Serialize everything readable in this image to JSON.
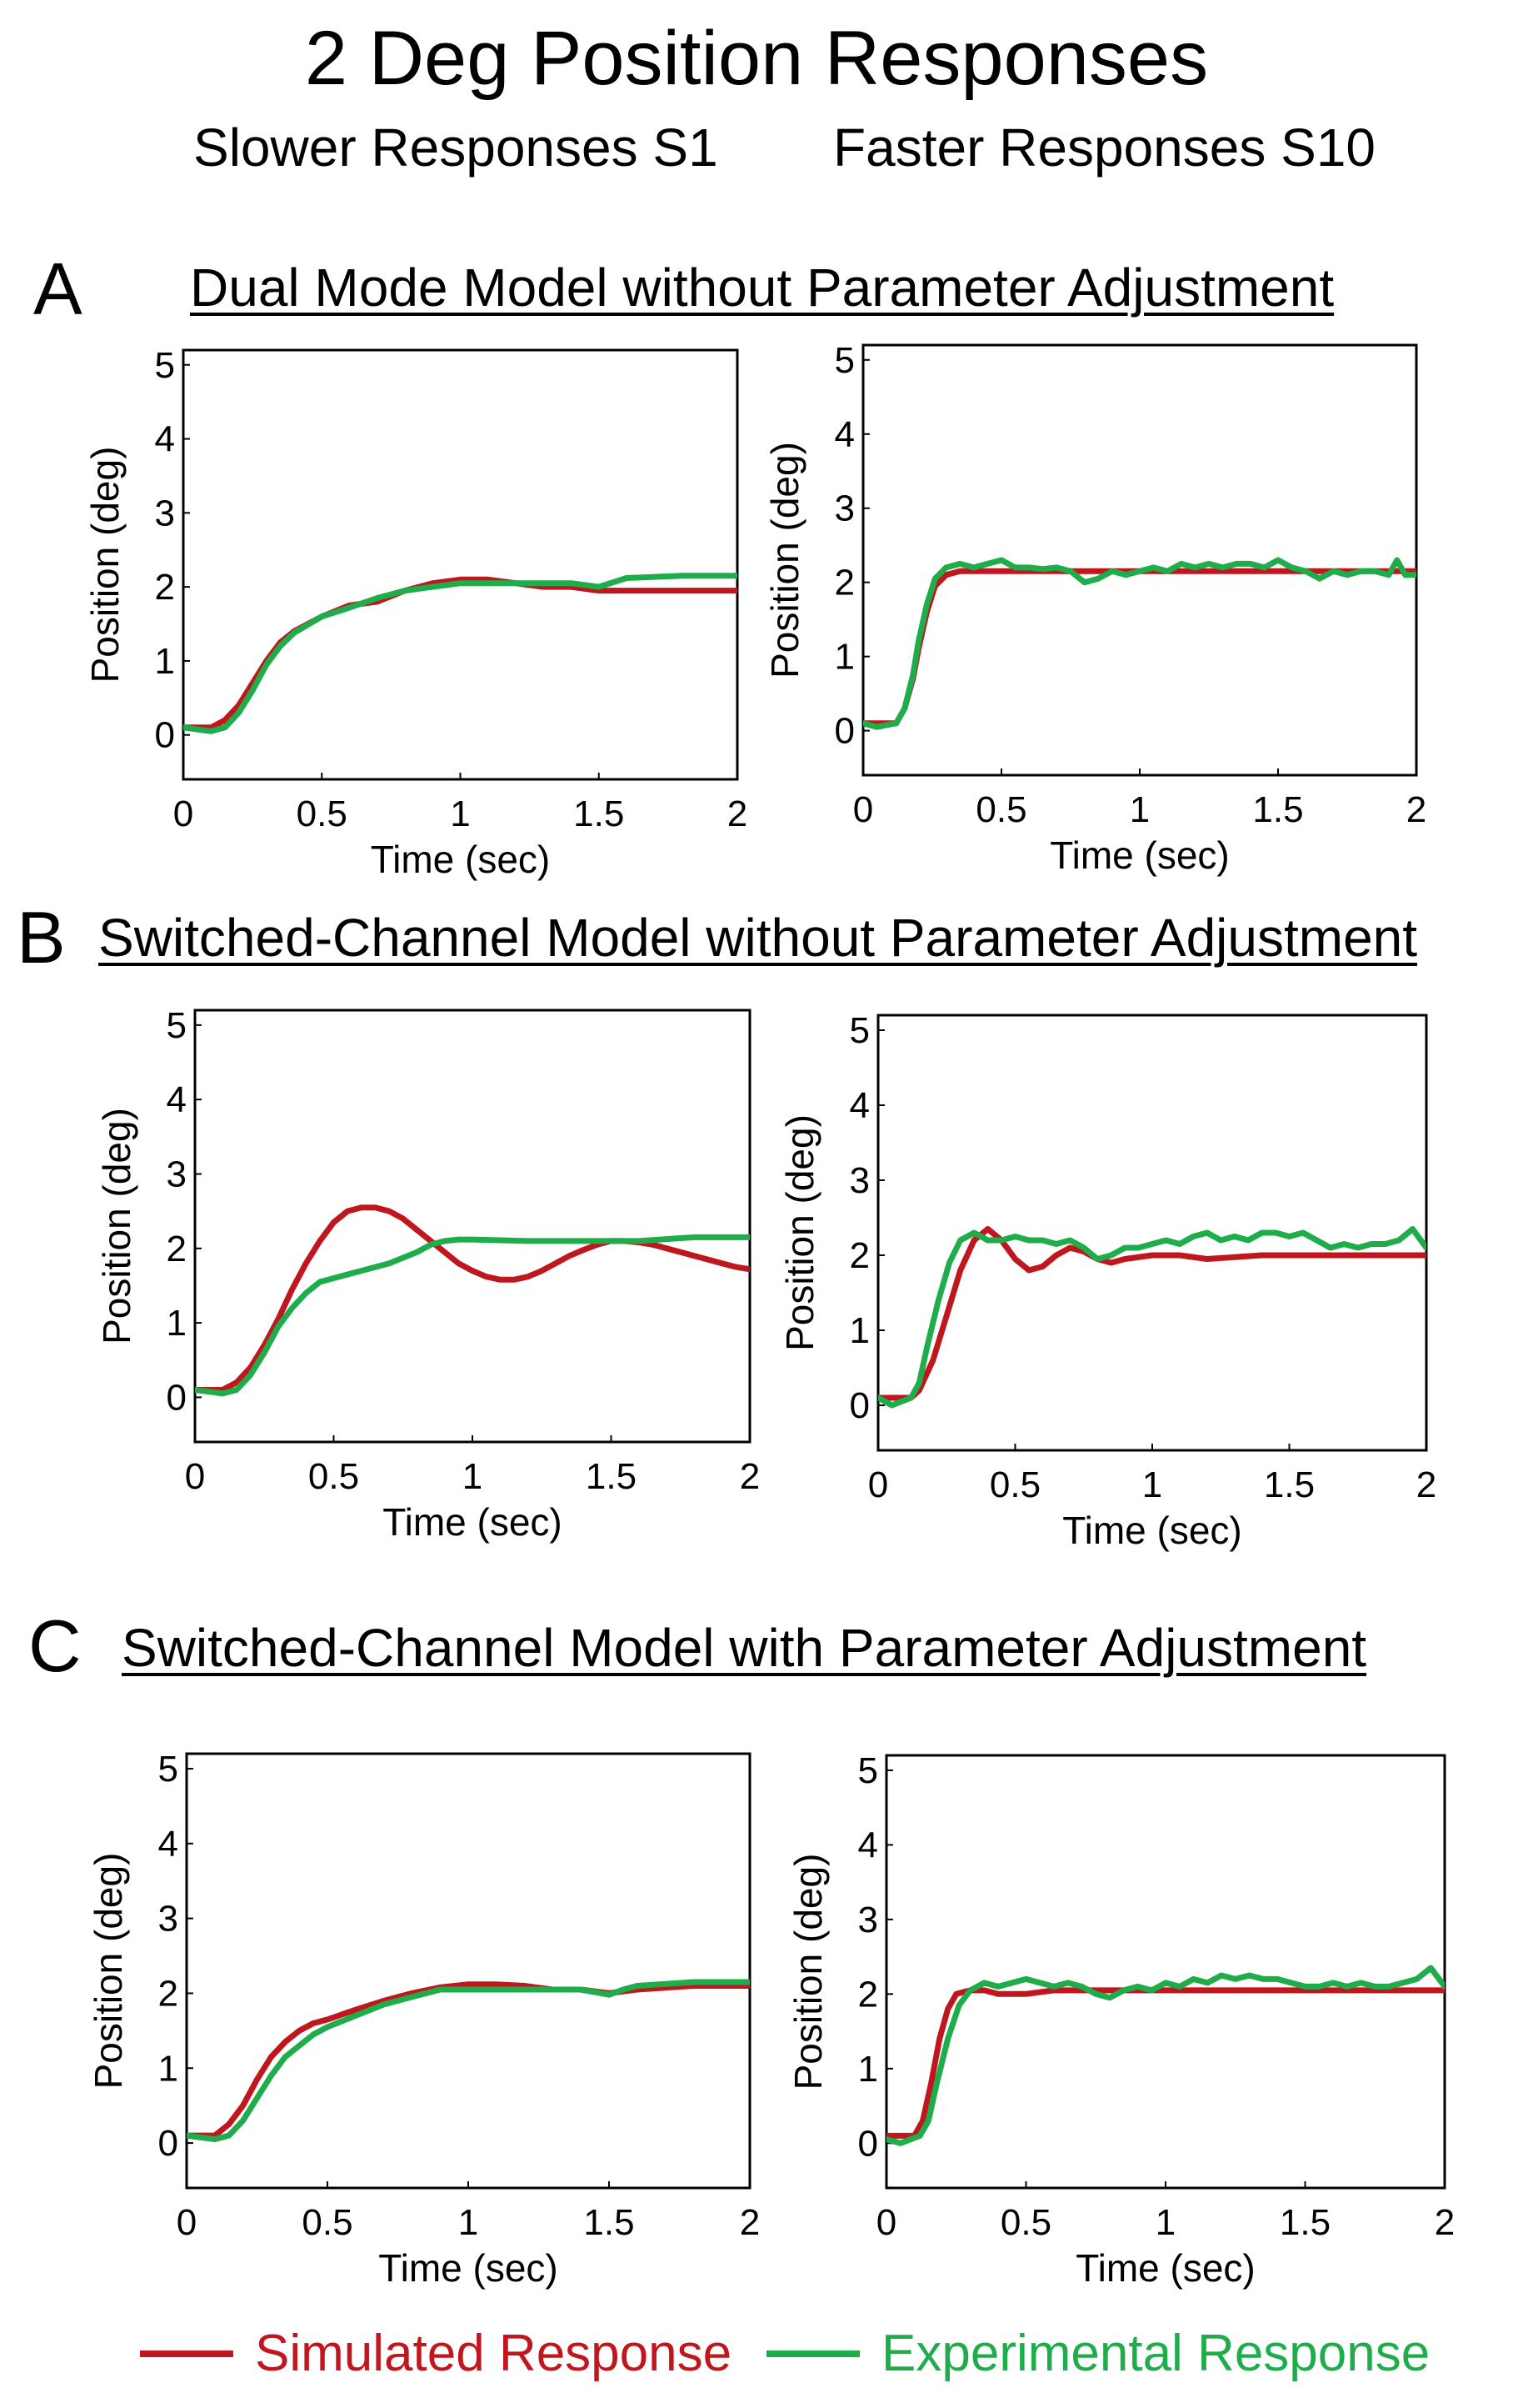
{
  "figure": {
    "title": "2 Deg Position Responses",
    "subtitle_left": "Slower Responses  S1",
    "subtitle_right": "Faster Responses  S10",
    "sections": [
      {
        "letter": "A",
        "title": "Dual Mode Model without Parameter Adjustment"
      },
      {
        "letter": "B",
        "title": "Switched-Channel  Model without Parameter Adjustment"
      },
      {
        "letter": "C",
        "title": "Switched-Channel  Model with Parameter Adjustment"
      }
    ],
    "legend": [
      {
        "label": "Simulated Response",
        "color": "#c0161e"
      },
      {
        "label": "Experimental Response",
        "color": "#1fad4b"
      }
    ]
  },
  "chart_data": [
    {
      "id": "A-left",
      "type": "line",
      "xlabel": "Time (sec)",
      "ylabel": "Position (deg)",
      "xlim": [
        0,
        2
      ],
      "ylim": [
        -0.6,
        5.2
      ],
      "xticks": [
        0,
        0.5,
        1,
        1.5,
        2
      ],
      "xtick_labels": [
        "0",
        "0.5",
        "1",
        "1.5",
        "2"
      ],
      "yticks": [
        0,
        1,
        2,
        3,
        4,
        5
      ],
      "ytick_labels": [
        "0",
        "1",
        "2",
        "3",
        "4",
        "5"
      ],
      "series": [
        {
          "name": "Simulated Response",
          "color": "#c0161e",
          "x": [
            0,
            0.1,
            0.15,
            0.2,
            0.25,
            0.3,
            0.35,
            0.4,
            0.5,
            0.6,
            0.7,
            0.8,
            0.9,
            1.0,
            1.1,
            1.2,
            1.3,
            1.4,
            1.5,
            1.6,
            1.8,
            2.0
          ],
          "y": [
            0.1,
            0.1,
            0.2,
            0.4,
            0.7,
            1.0,
            1.25,
            1.4,
            1.6,
            1.75,
            1.8,
            1.95,
            2.05,
            2.1,
            2.1,
            2.05,
            2.0,
            2.0,
            1.95,
            1.95,
            1.95,
            1.95
          ]
        },
        {
          "name": "Experimental Response",
          "color": "#1fad4b",
          "x": [
            0,
            0.1,
            0.15,
            0.2,
            0.25,
            0.3,
            0.35,
            0.4,
            0.5,
            0.6,
            0.7,
            0.8,
            0.9,
            1.0,
            1.1,
            1.2,
            1.3,
            1.4,
            1.5,
            1.6,
            1.8,
            2.0
          ],
          "y": [
            0.1,
            0.05,
            0.1,
            0.3,
            0.6,
            0.95,
            1.2,
            1.38,
            1.6,
            1.72,
            1.85,
            1.95,
            2.0,
            2.05,
            2.05,
            2.05,
            2.05,
            2.05,
            2.0,
            2.12,
            2.15,
            2.15
          ]
        }
      ]
    },
    {
      "id": "A-right",
      "type": "line",
      "xlabel": "Time (sec)",
      "ylabel": "Position (deg)",
      "xlim": [
        0,
        2
      ],
      "ylim": [
        -0.6,
        5.2
      ],
      "xticks": [
        0,
        0.5,
        1,
        1.5,
        2
      ],
      "xtick_labels": [
        "0",
        "0.5",
        "1",
        "1.5",
        "2"
      ],
      "yticks": [
        0,
        1,
        2,
        3,
        4,
        5
      ],
      "ytick_labels": [
        "0",
        "1",
        "2",
        "3",
        "4",
        "5"
      ],
      "series": [
        {
          "name": "Simulated Response",
          "color": "#c0161e",
          "x": [
            0,
            0.12,
            0.15,
            0.18,
            0.2,
            0.23,
            0.26,
            0.3,
            0.35,
            0.45,
            0.6,
            0.8,
            1.0,
            1.2,
            1.4,
            1.6,
            1.8,
            2.0
          ],
          "y": [
            0.1,
            0.1,
            0.3,
            0.7,
            1.1,
            1.6,
            1.95,
            2.1,
            2.15,
            2.15,
            2.15,
            2.15,
            2.15,
            2.15,
            2.15,
            2.15,
            2.15,
            2.15
          ]
        },
        {
          "name": "Experimental Response",
          "color": "#1fad4b",
          "x": [
            0,
            0.05,
            0.12,
            0.15,
            0.18,
            0.2,
            0.23,
            0.26,
            0.3,
            0.35,
            0.4,
            0.45,
            0.5,
            0.55,
            0.6,
            0.65,
            0.7,
            0.75,
            0.8,
            0.85,
            0.9,
            0.95,
            1.0,
            1.05,
            1.1,
            1.15,
            1.2,
            1.25,
            1.3,
            1.35,
            1.4,
            1.45,
            1.5,
            1.55,
            1.6,
            1.65,
            1.7,
            1.75,
            1.8,
            1.85,
            1.9,
            1.93,
            1.96,
            2.0
          ],
          "y": [
            0.1,
            0.05,
            0.1,
            0.3,
            0.75,
            1.2,
            1.7,
            2.05,
            2.2,
            2.25,
            2.2,
            2.25,
            2.3,
            2.2,
            2.2,
            2.18,
            2.2,
            2.15,
            2.0,
            2.05,
            2.15,
            2.1,
            2.15,
            2.2,
            2.15,
            2.25,
            2.2,
            2.25,
            2.2,
            2.25,
            2.25,
            2.2,
            2.3,
            2.2,
            2.15,
            2.05,
            2.15,
            2.1,
            2.15,
            2.15,
            2.1,
            2.3,
            2.1,
            2.1
          ]
        }
      ]
    },
    {
      "id": "B-left",
      "type": "line",
      "xlabel": "Time (sec)",
      "ylabel": "Position (deg)",
      "xlim": [
        0,
        2
      ],
      "ylim": [
        -0.6,
        5.2
      ],
      "xticks": [
        0,
        0.5,
        1,
        1.5,
        2
      ],
      "xtick_labels": [
        "0",
        "0.5",
        "1",
        "1.5",
        "2"
      ],
      "yticks": [
        0,
        1,
        2,
        3,
        4,
        5
      ],
      "ytick_labels": [
        "0",
        "1",
        "2",
        "3",
        "4",
        "5"
      ],
      "series": [
        {
          "name": "Simulated Response",
          "color": "#c0161e",
          "x": [
            0,
            0.1,
            0.15,
            0.2,
            0.25,
            0.3,
            0.35,
            0.4,
            0.45,
            0.5,
            0.55,
            0.6,
            0.65,
            0.7,
            0.75,
            0.8,
            0.85,
            0.9,
            0.95,
            1.0,
            1.05,
            1.1,
            1.15,
            1.2,
            1.25,
            1.3,
            1.35,
            1.4,
            1.45,
            1.5,
            1.55,
            1.6,
            1.65,
            1.7,
            1.75,
            1.8,
            1.85,
            1.9,
            1.95,
            2.0
          ],
          "y": [
            0.1,
            0.1,
            0.2,
            0.4,
            0.7,
            1.05,
            1.45,
            1.8,
            2.1,
            2.35,
            2.5,
            2.55,
            2.55,
            2.5,
            2.4,
            2.25,
            2.1,
            1.95,
            1.8,
            1.7,
            1.62,
            1.58,
            1.58,
            1.62,
            1.7,
            1.8,
            1.9,
            1.98,
            2.05,
            2.1,
            2.1,
            2.08,
            2.05,
            2.0,
            1.95,
            1.9,
            1.85,
            1.8,
            1.75,
            1.72
          ]
        },
        {
          "name": "Experimental Response",
          "color": "#1fad4b",
          "x": [
            0,
            0.1,
            0.15,
            0.2,
            0.25,
            0.3,
            0.35,
            0.4,
            0.45,
            0.5,
            0.6,
            0.7,
            0.8,
            0.85,
            0.9,
            0.95,
            1.0,
            1.2,
            1.4,
            1.6,
            1.8,
            2.0
          ],
          "y": [
            0.1,
            0.05,
            0.1,
            0.3,
            0.6,
            0.95,
            1.2,
            1.4,
            1.55,
            1.6,
            1.7,
            1.8,
            1.95,
            2.05,
            2.1,
            2.12,
            2.12,
            2.1,
            2.1,
            2.1,
            2.15,
            2.15
          ]
        }
      ]
    },
    {
      "id": "B-right",
      "type": "line",
      "xlabel": "Time (sec)",
      "ylabel": "Position (deg)",
      "xlim": [
        0,
        2
      ],
      "ylim": [
        -0.6,
        5.2
      ],
      "xticks": [
        0,
        0.5,
        1,
        1.5,
        2
      ],
      "xtick_labels": [
        "0",
        "0.5",
        "1",
        "1.5",
        "2"
      ],
      "yticks": [
        0,
        1,
        2,
        3,
        4,
        5
      ],
      "ytick_labels": [
        "0",
        "1",
        "2",
        "3",
        "4",
        "5"
      ],
      "series": [
        {
          "name": "Simulated Response",
          "color": "#c0161e",
          "x": [
            0,
            0.12,
            0.15,
            0.2,
            0.25,
            0.3,
            0.35,
            0.4,
            0.45,
            0.5,
            0.55,
            0.6,
            0.65,
            0.7,
            0.75,
            0.8,
            0.85,
            0.9,
            1.0,
            1.1,
            1.2,
            1.4,
            1.6,
            1.8,
            2.0
          ],
          "y": [
            0.1,
            0.1,
            0.2,
            0.6,
            1.2,
            1.8,
            2.2,
            2.35,
            2.2,
            1.95,
            1.8,
            1.85,
            2.0,
            2.1,
            2.05,
            1.95,
            1.9,
            1.95,
            2.0,
            2.0,
            1.95,
            2.0,
            2.0,
            2.0,
            2.0
          ]
        },
        {
          "name": "Experimental Response",
          "color": "#1fad4b",
          "x": [
            0,
            0.05,
            0.12,
            0.15,
            0.18,
            0.22,
            0.26,
            0.3,
            0.35,
            0.4,
            0.45,
            0.5,
            0.55,
            0.6,
            0.65,
            0.7,
            0.75,
            0.8,
            0.85,
            0.9,
            0.95,
            1.0,
            1.05,
            1.1,
            1.15,
            1.2,
            1.25,
            1.3,
            1.35,
            1.4,
            1.45,
            1.5,
            1.55,
            1.6,
            1.65,
            1.7,
            1.75,
            1.8,
            1.85,
            1.9,
            1.95,
            2.0
          ],
          "y": [
            0.1,
            0.0,
            0.1,
            0.3,
            0.8,
            1.4,
            1.9,
            2.2,
            2.3,
            2.2,
            2.2,
            2.25,
            2.2,
            2.2,
            2.15,
            2.2,
            2.1,
            1.95,
            2.0,
            2.1,
            2.1,
            2.15,
            2.2,
            2.15,
            2.25,
            2.3,
            2.2,
            2.25,
            2.2,
            2.3,
            2.3,
            2.25,
            2.3,
            2.2,
            2.1,
            2.15,
            2.1,
            2.15,
            2.15,
            2.2,
            2.35,
            2.1
          ]
        }
      ]
    },
    {
      "id": "C-left",
      "type": "line",
      "xlabel": "Time (sec)",
      "ylabel": "Position (deg)",
      "xlim": [
        0,
        2
      ],
      "ylim": [
        -0.6,
        5.2
      ],
      "xticks": [
        0,
        0.5,
        1,
        1.5,
        2
      ],
      "xtick_labels": [
        "0",
        "0.5",
        "1",
        "1.5",
        "2"
      ],
      "yticks": [
        0,
        1,
        2,
        3,
        4,
        5
      ],
      "ytick_labels": [
        "0",
        "1",
        "2",
        "3",
        "4",
        "5"
      ],
      "series": [
        {
          "name": "Simulated Response",
          "color": "#c0161e",
          "x": [
            0,
            0.1,
            0.15,
            0.2,
            0.25,
            0.3,
            0.35,
            0.4,
            0.45,
            0.5,
            0.6,
            0.7,
            0.8,
            0.9,
            1.0,
            1.1,
            1.2,
            1.3,
            1.4,
            1.5,
            1.6,
            1.8,
            2.0
          ],
          "y": [
            0.1,
            0.1,
            0.25,
            0.5,
            0.85,
            1.15,
            1.35,
            1.5,
            1.6,
            1.65,
            1.78,
            1.9,
            2.0,
            2.08,
            2.12,
            2.12,
            2.1,
            2.05,
            2.05,
            2.0,
            2.05,
            2.1,
            2.1
          ]
        },
        {
          "name": "Experimental Response",
          "color": "#1fad4b",
          "x": [
            0,
            0.1,
            0.15,
            0.2,
            0.25,
            0.3,
            0.35,
            0.4,
            0.45,
            0.5,
            0.6,
            0.7,
            0.8,
            0.9,
            1.0,
            1.1,
            1.2,
            1.3,
            1.4,
            1.5,
            1.55,
            1.6,
            1.8,
            2.0
          ],
          "y": [
            0.1,
            0.05,
            0.1,
            0.3,
            0.6,
            0.9,
            1.15,
            1.3,
            1.45,
            1.55,
            1.7,
            1.85,
            1.95,
            2.05,
            2.05,
            2.05,
            2.05,
            2.05,
            2.05,
            1.98,
            2.05,
            2.1,
            2.15,
            2.15
          ]
        }
      ]
    },
    {
      "id": "C-right",
      "type": "line",
      "xlabel": "Time (sec)",
      "ylabel": "Position (deg)",
      "xlim": [
        0,
        2
      ],
      "ylim": [
        -0.6,
        5.2
      ],
      "xticks": [
        0,
        0.5,
        1,
        1.5,
        2
      ],
      "xtick_labels": [
        "0",
        "0.5",
        "1",
        "1.5",
        "2"
      ],
      "yticks": [
        0,
        1,
        2,
        3,
        4,
        5
      ],
      "ytick_labels": [
        "0",
        "1",
        "2",
        "3",
        "4",
        "5"
      ],
      "series": [
        {
          "name": "Simulated Response",
          "color": "#c0161e",
          "x": [
            0,
            0.1,
            0.13,
            0.16,
            0.19,
            0.22,
            0.25,
            0.3,
            0.35,
            0.4,
            0.5,
            0.6,
            0.8,
            1.0,
            1.2,
            1.4,
            1.6,
            1.8,
            2.0
          ],
          "y": [
            0.1,
            0.1,
            0.3,
            0.8,
            1.4,
            1.8,
            2.0,
            2.05,
            2.05,
            2.0,
            2.0,
            2.05,
            2.05,
            2.05,
            2.05,
            2.05,
            2.05,
            2.05,
            2.05
          ]
        },
        {
          "name": "Experimental Response",
          "color": "#1fad4b",
          "x": [
            0,
            0.05,
            0.12,
            0.15,
            0.18,
            0.22,
            0.26,
            0.3,
            0.35,
            0.4,
            0.45,
            0.5,
            0.55,
            0.6,
            0.65,
            0.7,
            0.75,
            0.8,
            0.85,
            0.9,
            0.95,
            1.0,
            1.05,
            1.1,
            1.15,
            1.2,
            1.25,
            1.3,
            1.35,
            1.4,
            1.45,
            1.5,
            1.55,
            1.6,
            1.65,
            1.7,
            1.75,
            1.8,
            1.85,
            1.9,
            1.95,
            2.0
          ],
          "y": [
            0.05,
            0.0,
            0.1,
            0.3,
            0.8,
            1.4,
            1.85,
            2.05,
            2.15,
            2.1,
            2.15,
            2.2,
            2.15,
            2.1,
            2.15,
            2.1,
            2.0,
            1.95,
            2.05,
            2.1,
            2.05,
            2.15,
            2.1,
            2.2,
            2.15,
            2.25,
            2.2,
            2.25,
            2.2,
            2.2,
            2.15,
            2.1,
            2.1,
            2.15,
            2.1,
            2.15,
            2.1,
            2.1,
            2.15,
            2.2,
            2.35,
            2.1
          ]
        }
      ]
    }
  ]
}
